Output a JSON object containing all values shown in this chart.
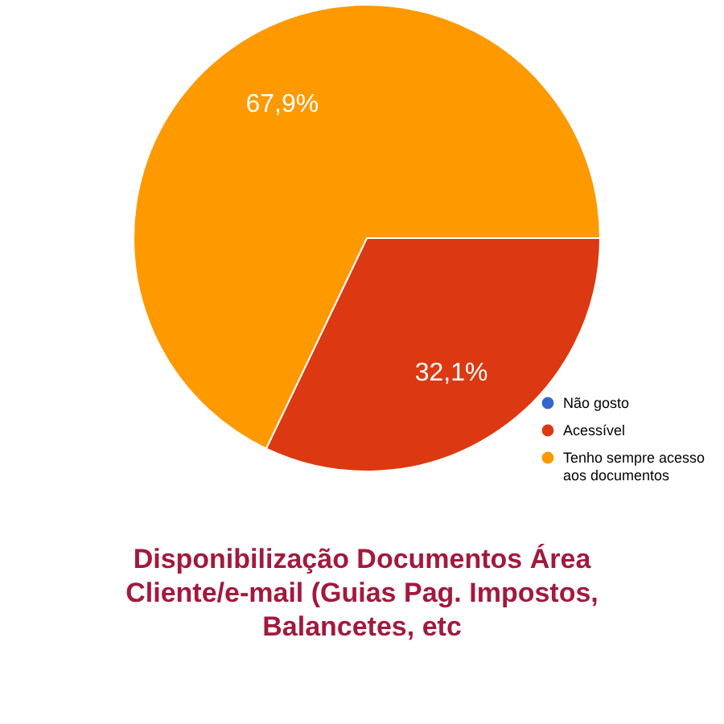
{
  "chart_data": {
    "type": "pie",
    "title": "Disponibilização Documentos Área Cliente/e-mail (Guias Pag. Impostos, Balancetes, etc",
    "categories": [
      "Não gosto",
      "Acessível",
      "Tenho sempre acesso aos documentos"
    ],
    "values": [
      0,
      32.1,
      67.9
    ],
    "colors": [
      "#3366cc",
      "#dc3912",
      "#ff9900"
    ],
    "value_labels": [
      null,
      "32,1%",
      "67,9%"
    ],
    "legend": "bottom right"
  }
}
